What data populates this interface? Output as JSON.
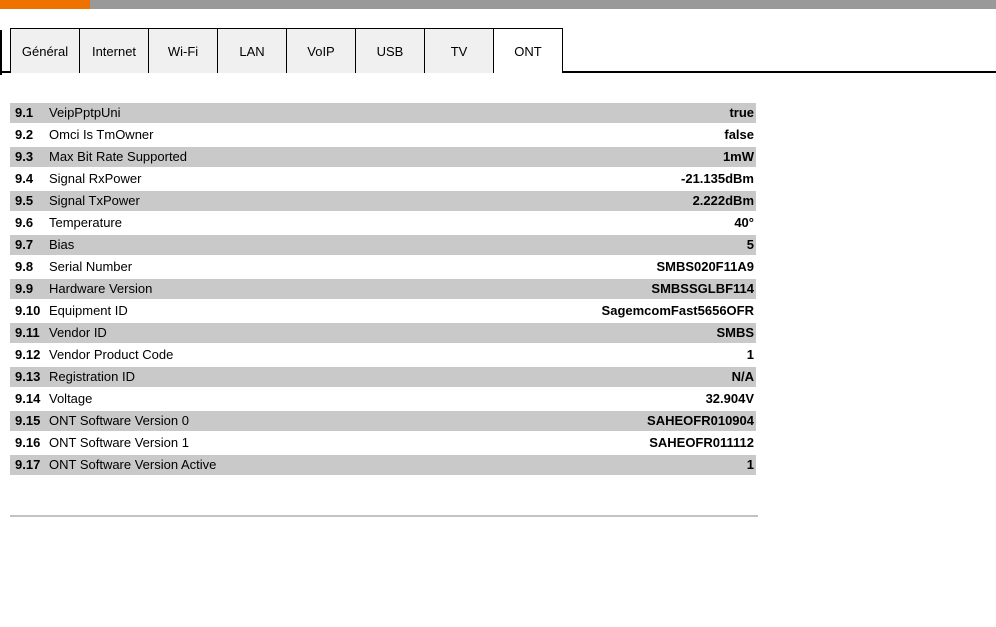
{
  "colors": {
    "accent-orange": "#EF7100",
    "topbar-gray": "#999999",
    "row-shade": "#C9C9C9",
    "tab-bg": "#F0F0F0",
    "tab-border": "#000000",
    "rule-gray": "#C3C3C3",
    "text": "#000000"
  },
  "tabs": {
    "active_label": "ONT",
    "items": [
      {
        "id": "general",
        "label": "Général",
        "active": false
      },
      {
        "id": "internet",
        "label": "Internet",
        "active": false
      },
      {
        "id": "wifi",
        "label": "Wi-Fi",
        "active": false
      },
      {
        "id": "lan",
        "label": "LAN",
        "active": false
      },
      {
        "id": "voip",
        "label": "VoIP",
        "active": false
      },
      {
        "id": "usb",
        "label": "USB",
        "active": false
      },
      {
        "id": "tv",
        "label": "TV",
        "active": false
      },
      {
        "id": "ont",
        "label": "ONT",
        "active": true
      }
    ]
  },
  "table": {
    "rows": [
      {
        "num": "9.1",
        "label": "VeipPptpUni",
        "value": "true"
      },
      {
        "num": "9.2",
        "label": "Omci Is TmOwner",
        "value": "false"
      },
      {
        "num": "9.3",
        "label": "Max Bit Rate Supported",
        "value": "1mW"
      },
      {
        "num": "9.4",
        "label": "Signal RxPower",
        "value": "-21.135dBm"
      },
      {
        "num": "9.5",
        "label": "Signal TxPower",
        "value": "2.222dBm"
      },
      {
        "num": "9.6",
        "label": "Temperature",
        "value": "40°"
      },
      {
        "num": "9.7",
        "label": "Bias",
        "value": "5"
      },
      {
        "num": "9.8",
        "label": "Serial Number",
        "value": "SMBS020F11A9"
      },
      {
        "num": "9.9",
        "label": "Hardware Version",
        "value": "SMBSSGLBF114"
      },
      {
        "num": "9.10",
        "label": "Equipment ID",
        "value": "SagemcomFast5656OFR"
      },
      {
        "num": "9.11",
        "label": "Vendor ID",
        "value": "SMBS"
      },
      {
        "num": "9.12",
        "label": "Vendor Product Code",
        "value": "1"
      },
      {
        "num": "9.13",
        "label": "Registration ID",
        "value": "N/A"
      },
      {
        "num": "9.14",
        "label": "Voltage",
        "value": "32.904V"
      },
      {
        "num": "9.15",
        "label": "ONT Software Version 0",
        "value": "SAHEOFR010904"
      },
      {
        "num": "9.16",
        "label": "ONT Software Version 1",
        "value": "SAHEOFR011112"
      },
      {
        "num": "9.17",
        "label": "ONT Software Version Active",
        "value": "1"
      }
    ]
  }
}
